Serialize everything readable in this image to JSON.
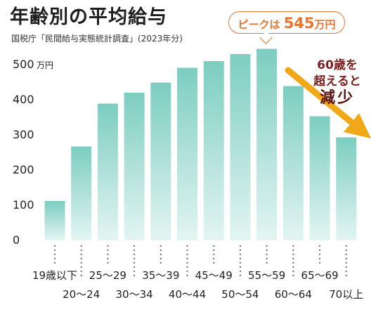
{
  "header": {
    "title": "年齢別の平均給与",
    "subtitle": "国税庁「民間給与実態統計調査」(2023年分)"
  },
  "callout": {
    "prefix": "ピークは",
    "value": "545",
    "suffix": "万円"
  },
  "annotation": {
    "line1": "60歳を",
    "line2": "超えると",
    "line3": "減少"
  },
  "colors": {
    "bar_top": "#7ccdc0",
    "bar_bottom": "#e3f5f2",
    "accent": "#e8742e",
    "arrow": "#f0a818",
    "axis_dots": "#666666"
  },
  "chart_data": {
    "type": "bar",
    "title": "年齢別の平均給与",
    "y_unit_label": "万円",
    "categories": [
      "19歳以下",
      "20～24",
      "25～29",
      "30～34",
      "35～39",
      "40～44",
      "45～49",
      "50～54",
      "55～59",
      "60～64",
      "65～69",
      "70以上"
    ],
    "values": [
      112,
      267,
      389,
      420,
      449,
      491,
      510,
      530,
      545,
      439,
      353,
      293
    ],
    "ylim": [
      0,
      500
    ],
    "yticks": [
      0,
      100,
      200,
      300,
      400,
      500
    ],
    "grid": false,
    "legend": "none"
  }
}
